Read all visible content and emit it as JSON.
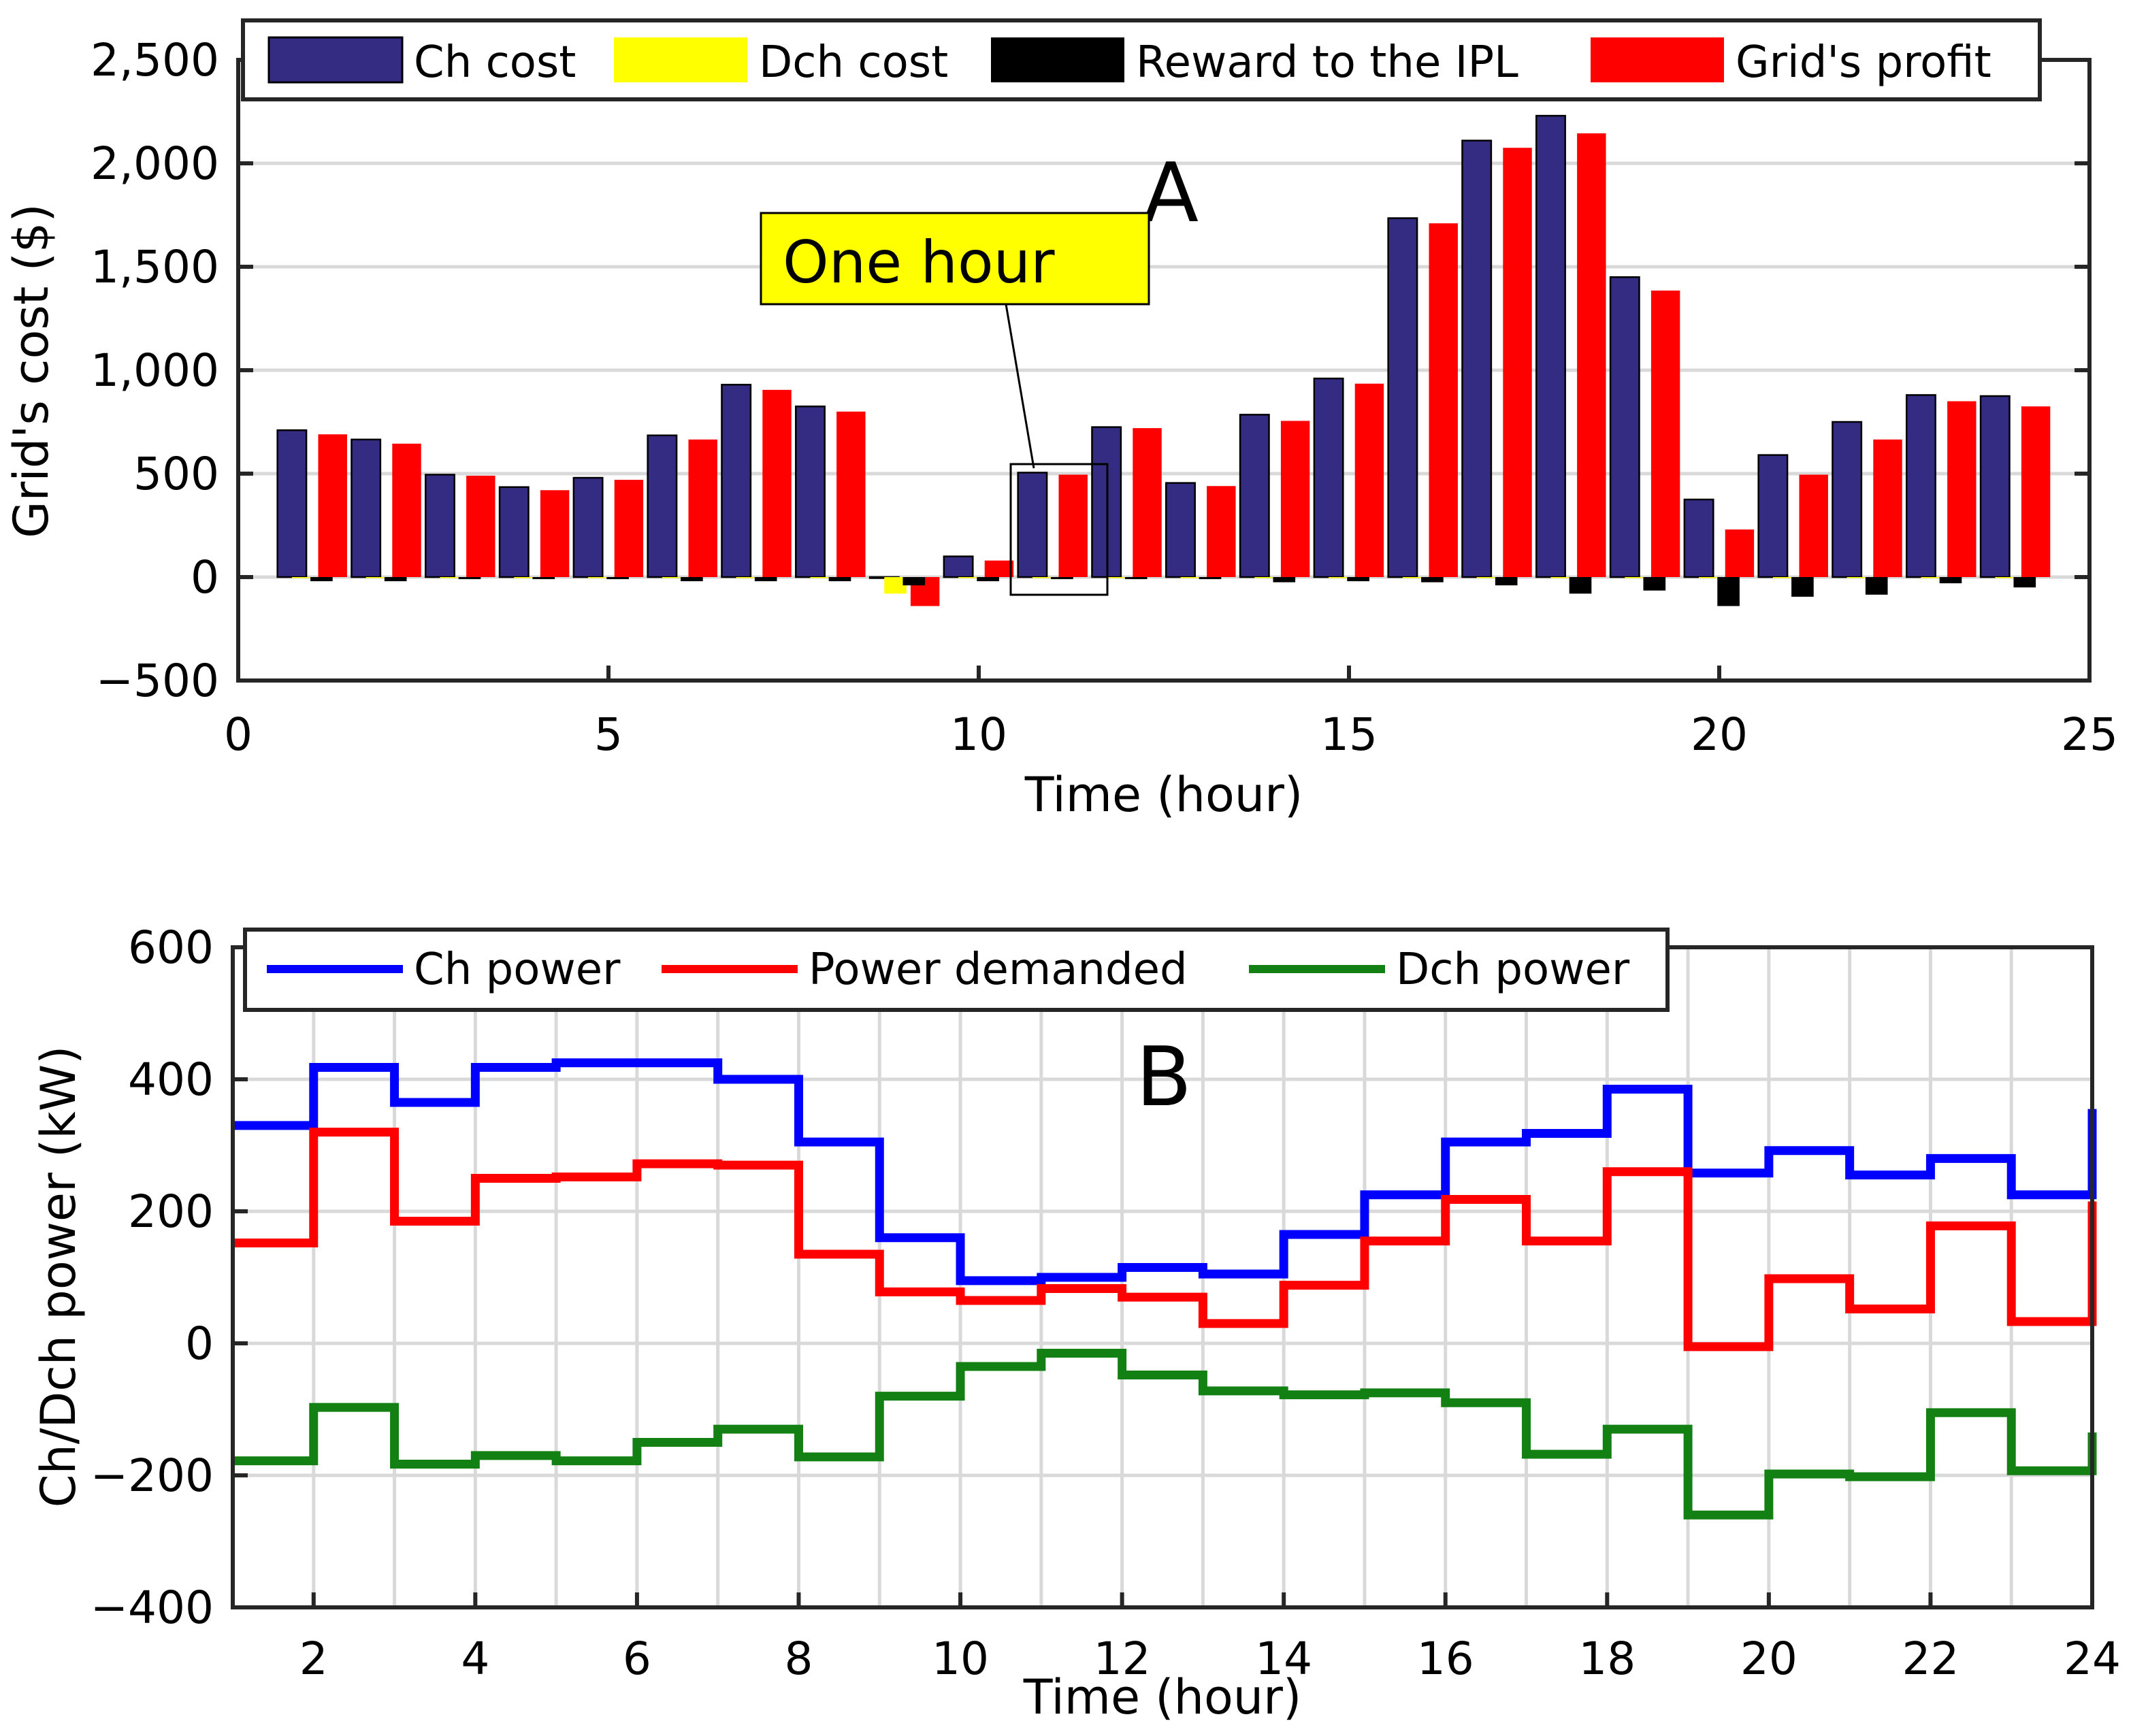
{
  "colors": {
    "ch_cost": "#342b82",
    "dch_cost": "#ffff00",
    "reward": "#000000",
    "grid_profit": "#ff0000",
    "ch_power": "#0000ff",
    "power_demanded": "#ff0000",
    "dch_power": "#138013",
    "annotation_fill": "#ffff00",
    "gridline": "#d9d9d9"
  },
  "chart_data": [
    {
      "type": "bar",
      "panel_label": "A",
      "annotation": "One hour",
      "xlabel": "Time (hour)",
      "ylabel": "Grid's cost ($)",
      "xlim": [
        0,
        25
      ],
      "ylim": [
        -500,
        2500
      ],
      "x_ticks": [
        "0",
        "5",
        "10",
        "15",
        "20",
        "25"
      ],
      "y_ticks": [
        "−500",
        "0",
        "500",
        "1,000",
        "1,500",
        "2,000",
        "2,500"
      ],
      "legend_position": "top",
      "categories": [
        1,
        2,
        3,
        4,
        5,
        6,
        7,
        8,
        9,
        10,
        11,
        12,
        13,
        14,
        15,
        16,
        17,
        18,
        19,
        20,
        21,
        22,
        23,
        24
      ],
      "series": [
        {
          "name": "Ch cost",
          "values": [
            710,
            665,
            495,
            435,
            480,
            685,
            930,
            825,
            0,
            100,
            505,
            725,
            455,
            785,
            960,
            1735,
            2110,
            2230,
            1450,
            375,
            590,
            750,
            880,
            875
          ]
        },
        {
          "name": "Dch cost",
          "values": [
            0,
            0,
            0,
            0,
            0,
            0,
            0,
            0,
            -80,
            0,
            0,
            0,
            0,
            0,
            0,
            0,
            0,
            0,
            0,
            0,
            0,
            0,
            0,
            0
          ]
        },
        {
          "name": "Reward to the IPL",
          "values": [
            -20,
            -20,
            -10,
            -10,
            -10,
            -20,
            -20,
            -20,
            -40,
            -20,
            -10,
            -10,
            -10,
            -25,
            -20,
            -25,
            -40,
            -80,
            -65,
            -140,
            -95,
            -85,
            -30,
            -50
          ]
        },
        {
          "name": "Grid's profit",
          "values": [
            690,
            645,
            490,
            420,
            470,
            665,
            905,
            800,
            -140,
            80,
            495,
            720,
            440,
            755,
            935,
            1710,
            2075,
            2145,
            1385,
            230,
            495,
            665,
            850,
            825
          ]
        }
      ]
    },
    {
      "type": "line",
      "step": true,
      "panel_label": "B",
      "xlabel": "Time (hour)",
      "ylabel": "Ch/Dch power (kW)",
      "xlim": [
        1,
        24
      ],
      "ylim": [
        -400,
        600
      ],
      "x_ticks": [
        "2",
        "4",
        "6",
        "8",
        "10",
        "12",
        "14",
        "16",
        "18",
        "20",
        "22",
        "24"
      ],
      "y_ticks": [
        "−400",
        "−200",
        "0",
        "200",
        "400",
        "600"
      ],
      "grid": true,
      "legend_position": "top",
      "x": [
        1,
        2,
        3,
        4,
        5,
        6,
        7,
        8,
        9,
        10,
        11,
        12,
        13,
        14,
        15,
        16,
        17,
        18,
        19,
        20,
        21,
        22,
        23,
        24
      ],
      "series": [
        {
          "name": "Ch power",
          "values": [
            330,
            418,
            365,
            418,
            425,
            425,
            400,
            305,
            160,
            95,
            100,
            115,
            105,
            165,
            225,
            305,
            318,
            385,
            258,
            292,
            255,
            280,
            225,
            355
          ]
        },
        {
          "name": "Power demanded",
          "values": [
            152,
            320,
            185,
            250,
            252,
            272,
            270,
            135,
            78,
            65,
            83,
            70,
            30,
            88,
            155,
            218,
            155,
            260,
            -5,
            98,
            52,
            178,
            33,
            215
          ]
        },
        {
          "name": "Dch power",
          "values": [
            -178,
            -97,
            -183,
            -170,
            -178,
            -150,
            -130,
            -172,
            -80,
            -35,
            -15,
            -48,
            -72,
            -78,
            -75,
            -90,
            -168,
            -130,
            -260,
            -198,
            -202,
            -105,
            -193,
            -135
          ]
        }
      ]
    }
  ]
}
